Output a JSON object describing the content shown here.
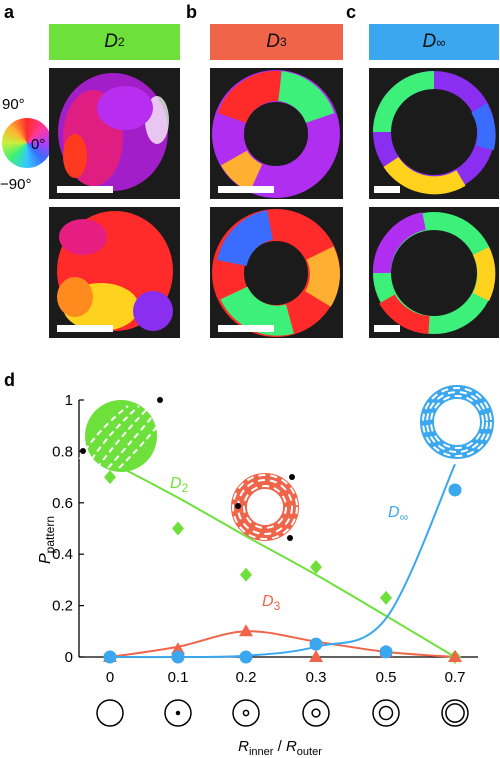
{
  "panels": {
    "a": {
      "letter": "a",
      "banner": "D",
      "banner_sub": "2",
      "color": "#6ee03c"
    },
    "b": {
      "letter": "b",
      "banner": "D",
      "banner_sub": "3",
      "color": "#f0644a"
    },
    "c": {
      "letter": "c",
      "banner": "D",
      "banner_sub": "∞",
      "color": "#3aa7ee"
    },
    "d": {
      "letter": "d"
    }
  },
  "color_wheel": {
    "top": "90°",
    "right": "0°",
    "bottom": "−90°"
  },
  "chart_data": {
    "type": "scatter",
    "ylabel_main": "P",
    "ylabel_sub": "pattern",
    "xlabel_main_1": "R",
    "xlabel_sub_1": "inner",
    "xlabel_sep": " / ",
    "xlabel_main_2": "R",
    "xlabel_sub_2": "outer",
    "categories": [
      "0",
      "0.1",
      "0.2",
      "0.3",
      "0.5",
      "0.7"
    ],
    "ylim": [
      0,
      1
    ],
    "yticks": [
      "0",
      "0.2",
      "0.4",
      "0.6",
      "0.8",
      "1"
    ],
    "series": [
      {
        "name": "D2",
        "label_main": "D",
        "label_sub": "2",
        "marker": "diamond",
        "color": "#6ee03c",
        "values": [
          0.7,
          0.5,
          0.32,
          0.35,
          0.23,
          0.0
        ],
        "fit": [
          0.76,
          0.62,
          0.47,
          0.32,
          0.16,
          0.0
        ]
      },
      {
        "name": "D3",
        "label_main": "D",
        "label_sub": "3",
        "marker": "triangle",
        "color": "#f0644a",
        "values": [
          0.0,
          0.03,
          0.1,
          0.0,
          0.02,
          0.0
        ],
        "fit": [
          0.0,
          0.04,
          0.1,
          0.06,
          0.02,
          0.0
        ]
      },
      {
        "name": "D∞",
        "label_main": "D",
        "label_sub": "∞",
        "marker": "circle",
        "color": "#3aa7ee",
        "values": [
          0.0,
          0.0,
          0.0,
          0.05,
          0.02,
          0.65
        ],
        "fit": [
          0.0,
          0.0,
          0.005,
          0.04,
          0.15,
          0.75
        ]
      }
    ],
    "ring_icons": [
      0,
      0.1,
      0.2,
      0.3,
      0.5,
      0.7
    ]
  }
}
